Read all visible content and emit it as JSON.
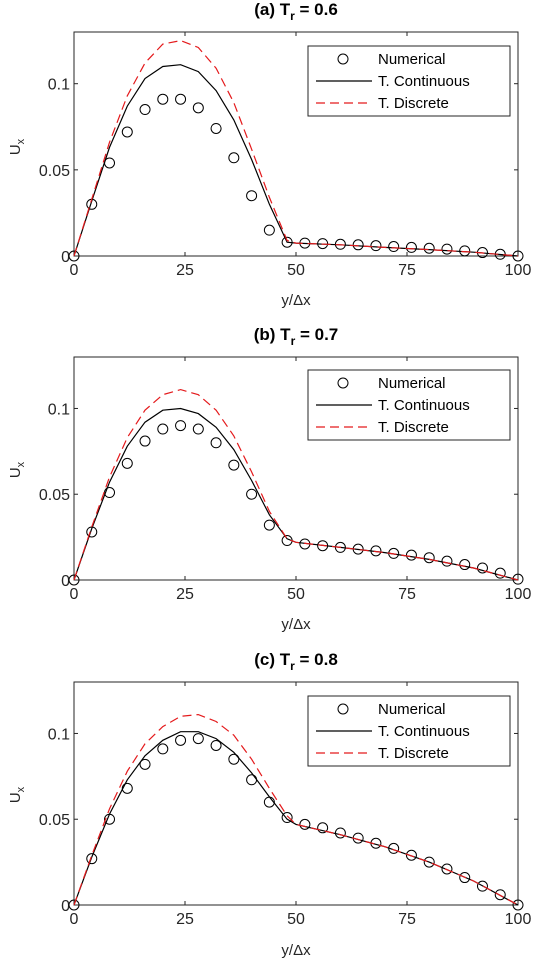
{
  "chart_data": [
    {
      "type": "line",
      "title_prefix": "(a) T",
      "title_subscript": "r",
      "title_suffix": " = 0.6",
      "xlabel": "y/Δx",
      "ylabel_main": "U",
      "ylabel_sub": "x",
      "xlim": [
        0,
        100
      ],
      "ylim": [
        0,
        0.13
      ],
      "xticks": [
        0,
        25,
        50,
        75,
        100
      ],
      "xtick_labels": [
        "0",
        "25",
        "50",
        "75",
        "100"
      ],
      "yticks": [
        0,
        0.05,
        0.1
      ],
      "ytick_labels": [
        "0",
        "0.05",
        "0.1"
      ],
      "legend": [
        "Numerical",
        "T. Continuous",
        "T. Discrete"
      ],
      "legend_position": "top-right",
      "grid": false,
      "series": [
        {
          "name": "Numerical",
          "style": "markers",
          "x": [
            0,
            4,
            8,
            12,
            16,
            20,
            24,
            28,
            32,
            36,
            40,
            44,
            48,
            52,
            56,
            60,
            64,
            68,
            72,
            76,
            80,
            84,
            88,
            92,
            96,
            100
          ],
          "y": [
            0,
            0.03,
            0.054,
            0.072,
            0.085,
            0.091,
            0.091,
            0.086,
            0.074,
            0.057,
            0.035,
            0.015,
            0.008,
            0.0075,
            0.0072,
            0.0068,
            0.0065,
            0.006,
            0.0055,
            0.005,
            0.0045,
            0.004,
            0.003,
            0.002,
            0.001,
            0
          ]
        },
        {
          "name": "T. Continuous",
          "style": "solid",
          "color": "#000000",
          "x": [
            0,
            4,
            8,
            12,
            16,
            20,
            24,
            28,
            32,
            36,
            40,
            44,
            48,
            50,
            60,
            70,
            80,
            90,
            100
          ],
          "y": [
            0,
            0.032,
            0.063,
            0.087,
            0.103,
            0.11,
            0.111,
            0.107,
            0.096,
            0.079,
            0.056,
            0.03,
            0.008,
            0.0075,
            0.0065,
            0.005,
            0.0037,
            0.0022,
            0
          ]
        },
        {
          "name": "T. Discrete",
          "style": "dashed",
          "color": "#e41a1c",
          "x": [
            0,
            4,
            8,
            12,
            16,
            20,
            24,
            28,
            32,
            36,
            40,
            44,
            48,
            50,
            60,
            70,
            80,
            90,
            100
          ],
          "y": [
            0,
            0.033,
            0.066,
            0.093,
            0.112,
            0.123,
            0.125,
            0.121,
            0.109,
            0.089,
            0.062,
            0.034,
            0.009,
            0.0075,
            0.0065,
            0.005,
            0.0037,
            0.0022,
            0
          ]
        }
      ]
    },
    {
      "type": "line",
      "title_prefix": "(b) T",
      "title_subscript": "r",
      "title_suffix": " = 0.7",
      "xlabel": "y/Δx",
      "ylabel_main": "U",
      "ylabel_sub": "x",
      "xlim": [
        0,
        100
      ],
      "ylim": [
        0,
        0.13
      ],
      "xticks": [
        0,
        25,
        50,
        75,
        100
      ],
      "xtick_labels": [
        "0",
        "25",
        "50",
        "75",
        "100"
      ],
      "yticks": [
        0,
        0.05,
        0.1
      ],
      "ytick_labels": [
        "0",
        "0.05",
        "0.1"
      ],
      "legend": [
        "Numerical",
        "T. Continuous",
        "T. Discrete"
      ],
      "legend_position": "top-right",
      "grid": false,
      "series": [
        {
          "name": "Numerical",
          "style": "markers",
          "x": [
            0,
            4,
            8,
            12,
            16,
            20,
            24,
            28,
            32,
            36,
            40,
            44,
            48,
            52,
            56,
            60,
            64,
            68,
            72,
            76,
            80,
            84,
            88,
            92,
            96,
            100
          ],
          "y": [
            0,
            0.028,
            0.051,
            0.068,
            0.081,
            0.088,
            0.09,
            0.088,
            0.08,
            0.067,
            0.05,
            0.032,
            0.023,
            0.021,
            0.02,
            0.019,
            0.018,
            0.017,
            0.0155,
            0.0145,
            0.013,
            0.011,
            0.009,
            0.007,
            0.004,
            0.0005
          ]
        },
        {
          "name": "T. Continuous",
          "style": "solid",
          "color": "#000000",
          "x": [
            0,
            4,
            8,
            12,
            16,
            20,
            24,
            28,
            32,
            36,
            40,
            44,
            48,
            50,
            60,
            70,
            80,
            90,
            100
          ],
          "y": [
            0,
            0.03,
            0.057,
            0.078,
            0.092,
            0.099,
            0.1,
            0.097,
            0.089,
            0.076,
            0.058,
            0.038,
            0.024,
            0.022,
            0.019,
            0.016,
            0.012,
            0.007,
            0
          ]
        },
        {
          "name": "T. Discrete",
          "style": "dashed",
          "color": "#e41a1c",
          "x": [
            0,
            4,
            8,
            12,
            16,
            20,
            24,
            28,
            32,
            36,
            40,
            44,
            48,
            50,
            60,
            70,
            80,
            90,
            100
          ],
          "y": [
            0,
            0.031,
            0.06,
            0.083,
            0.099,
            0.108,
            0.111,
            0.108,
            0.099,
            0.084,
            0.063,
            0.04,
            0.024,
            0.022,
            0.019,
            0.016,
            0.012,
            0.007,
            0
          ]
        }
      ]
    },
    {
      "type": "line",
      "title_prefix": "(c) T",
      "title_subscript": "r",
      "title_suffix": " = 0.8",
      "xlabel": "y/Δx",
      "ylabel_main": "U",
      "ylabel_sub": "x",
      "xlim": [
        0,
        100
      ],
      "ylim": [
        0,
        0.13
      ],
      "xticks": [
        0,
        25,
        50,
        75,
        100
      ],
      "xtick_labels": [
        "0",
        "25",
        "50",
        "75",
        "100"
      ],
      "yticks": [
        0,
        0.05,
        0.1
      ],
      "ytick_labels": [
        "0",
        "0.05",
        "0.1"
      ],
      "legend": [
        "Numerical",
        "T. Continuous",
        "T. Discrete"
      ],
      "legend_position": "top-right",
      "grid": false,
      "series": [
        {
          "name": "Numerical",
          "style": "markers",
          "x": [
            0,
            4,
            8,
            12,
            16,
            20,
            24,
            28,
            32,
            36,
            40,
            44,
            48,
            52,
            56,
            60,
            64,
            68,
            72,
            76,
            80,
            84,
            88,
            92,
            96,
            100
          ],
          "y": [
            0,
            0.027,
            0.05,
            0.068,
            0.082,
            0.091,
            0.096,
            0.097,
            0.093,
            0.085,
            0.073,
            0.06,
            0.051,
            0.047,
            0.045,
            0.042,
            0.039,
            0.036,
            0.033,
            0.029,
            0.025,
            0.021,
            0.016,
            0.011,
            0.006,
            0
          ]
        },
        {
          "name": "T. Continuous",
          "style": "solid",
          "color": "#000000",
          "x": [
            0,
            4,
            8,
            12,
            16,
            20,
            24,
            28,
            32,
            36,
            40,
            44,
            48,
            50,
            60,
            70,
            80,
            90,
            100
          ],
          "y": [
            0,
            0.028,
            0.053,
            0.073,
            0.087,
            0.096,
            0.101,
            0.101,
            0.097,
            0.089,
            0.077,
            0.063,
            0.05,
            0.047,
            0.041,
            0.034,
            0.025,
            0.014,
            0
          ]
        },
        {
          "name": "T. Discrete",
          "style": "dashed",
          "color": "#e41a1c",
          "x": [
            0,
            4,
            8,
            12,
            16,
            20,
            24,
            28,
            32,
            36,
            40,
            44,
            48,
            50,
            60,
            70,
            80,
            90,
            100
          ],
          "y": [
            0,
            0.029,
            0.056,
            0.078,
            0.094,
            0.104,
            0.11,
            0.111,
            0.107,
            0.099,
            0.085,
            0.068,
            0.052,
            0.047,
            0.041,
            0.034,
            0.025,
            0.014,
            0
          ]
        }
      ]
    }
  ]
}
